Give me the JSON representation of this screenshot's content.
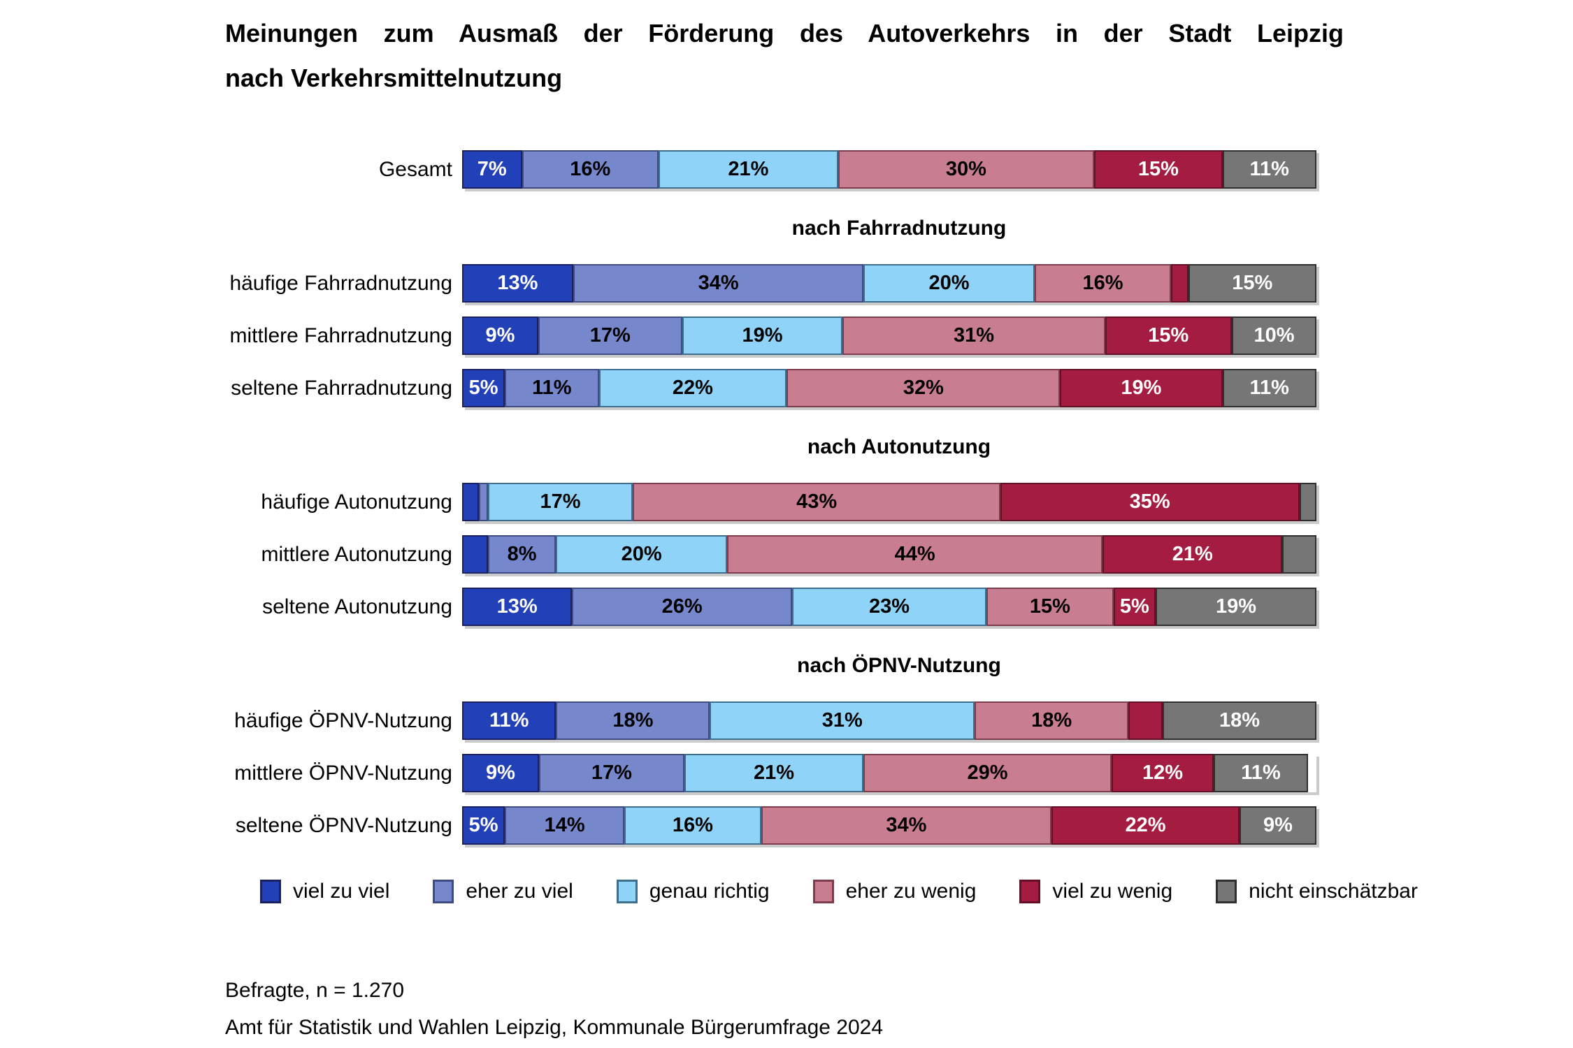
{
  "title": {
    "line1": "Meinungen zum Ausmaß der Förderung des Autoverkehrs in der Stadt Leipzig",
    "line2": "nach Verkehrsmittelnutzung"
  },
  "footer": {
    "line1": "Befragte, n = 1.270",
    "line2": "Amt für Statistik und Wahlen Leipzig, Kommunale Bürgerumfrage 2024"
  },
  "chart_data": {
    "type": "bar",
    "stacked": true,
    "orientation": "horizontal",
    "unit": "%",
    "axis_range": [
      0,
      100
    ],
    "grid": false,
    "legend_position": "bottom",
    "min_label_value": 5,
    "series": [
      {
        "name": "viel zu viel",
        "fill": "#2241B8",
        "border": "#1A2060",
        "text": "#FFFFFF"
      },
      {
        "name": "eher zu viel",
        "fill": "#7687CC",
        "border": "#3E4C83",
        "text": "#000000"
      },
      {
        "name": "genau richtig",
        "fill": "#8FD3F8",
        "border": "#3E6E8E",
        "text": "#000000"
      },
      {
        "name": "eher zu wenig",
        "fill": "#C97D90",
        "border": "#7E3B4B",
        "text": "#000000"
      },
      {
        "name": "viel zu wenig",
        "fill": "#A41C3F",
        "border": "#621026",
        "text": "#FFFFFF"
      },
      {
        "name": "nicht einschätzbar",
        "fill": "#767676",
        "border": "#2F2F2F",
        "text": "#FFFFFF"
      }
    ],
    "groups": [
      {
        "header": "",
        "rows": [
          {
            "label": "Gesamt",
            "values": [
              7,
              16,
              21,
              30,
              15,
              11
            ]
          }
        ]
      },
      {
        "header": "nach Fahrradnutzung",
        "rows": [
          {
            "label": "häufige Fahrradnutzung",
            "values": [
              13,
              34,
              20,
              16,
              2,
              15
            ]
          },
          {
            "label": "mittlere Fahrradnutzung",
            "values": [
              9,
              17,
              19,
              31,
              15,
              10
            ]
          },
          {
            "label": "seltene Fahrradnutzung",
            "values": [
              5,
              11,
              22,
              32,
              19,
              11
            ]
          }
        ]
      },
      {
        "header": "nach Autonutzung",
        "rows": [
          {
            "label": "häufige Autonutzung",
            "values": [
              2,
              1,
              17,
              43,
              35,
              2
            ]
          },
          {
            "label": "mittlere Autonutzung",
            "values": [
              3,
              8,
              20,
              44,
              21,
              4
            ]
          },
          {
            "label": "seltene Autonutzung",
            "values": [
              13,
              26,
              23,
              15,
              5,
              19
            ]
          }
        ]
      },
      {
        "header": "nach ÖPNV-Nutzung",
        "rows": [
          {
            "label": "häufige ÖPNV-Nutzung",
            "values": [
              11,
              18,
              31,
              18,
              4,
              18
            ]
          },
          {
            "label": "mittlere ÖPNV-Nutzung",
            "values": [
              9,
              17,
              21,
              29,
              12,
              11
            ]
          },
          {
            "label": "seltene ÖPNV-Nutzung",
            "values": [
              5,
              14,
              16,
              34,
              22,
              9
            ]
          }
        ]
      }
    ]
  }
}
